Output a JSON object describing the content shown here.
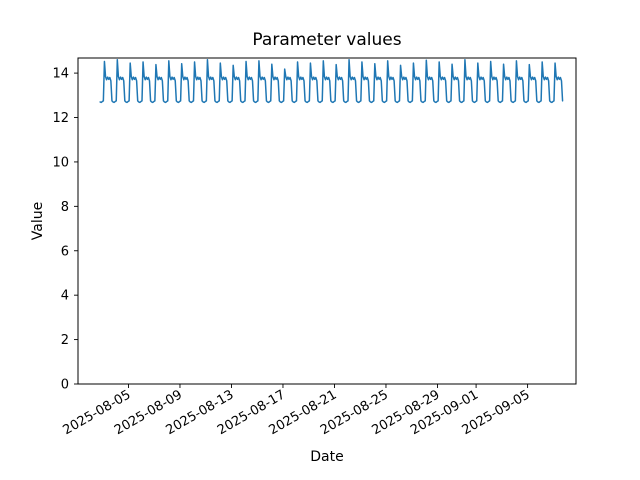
{
  "chart_data": {
    "type": "line",
    "title": "Parameter values",
    "xlabel": "Date",
    "ylabel": "Value",
    "grid": false,
    "legend_position": "none",
    "line_color": "#1f77b4",
    "axis_color": "#000000",
    "ylim": [
      0,
      14.68
    ],
    "y_ticks": [
      0,
      2,
      4,
      6,
      8,
      10,
      12,
      14
    ],
    "x_axis_origin_date": "2025-08-05",
    "xlim_day_offsets": [
      -3.92,
      34.76
    ],
    "x_ticks": [
      {
        "label": "2025-08-05",
        "day": 0
      },
      {
        "label": "2025-08-09",
        "day": 4
      },
      {
        "label": "2025-08-13",
        "day": 8
      },
      {
        "label": "2025-08-17",
        "day": 12
      },
      {
        "label": "2025-08-21",
        "day": 16
      },
      {
        "label": "2025-08-25",
        "day": 20
      },
      {
        "label": "2025-08-29",
        "day": 24
      },
      {
        "label": "2025-09-01",
        "day": 27
      },
      {
        "label": "2025-09-05",
        "day": 31
      }
    ],
    "series": [
      {
        "name": "parameter-values",
        "description": "Daily periodic signal: baseline ~12.7, sharp morning spike to ~14.5, afternoon plateau ~13.7-13.85, back to baseline",
        "data_start_date": "2025-08-02",
        "data_end_date": "2025-09-07",
        "start_day_offset": -2.2,
        "num_days": 36,
        "samples_per_day": 12,
        "sample_interval_hours": 2,
        "daily_profile": [
          12.7,
          12.68,
          12.72,
          12.75,
          14.5,
          13.85,
          13.7,
          13.82,
          13.72,
          13.8,
          13.65,
          12.75
        ],
        "peak_index": 4,
        "daily_peaks": [
          14.52,
          14.6,
          14.45,
          14.5,
          14.38,
          14.55,
          14.42,
          14.5,
          14.6,
          14.45,
          14.35,
          14.52,
          14.55,
          14.4,
          14.18,
          14.5,
          14.45,
          14.55,
          14.38,
          14.6,
          14.5,
          14.42,
          14.55,
          14.35,
          14.45,
          14.58,
          14.5,
          14.4,
          14.6,
          14.45,
          14.52,
          14.4,
          14.55,
          14.38,
          14.5,
          14.45
        ],
        "value_min": 12.68,
        "value_max": 14.6
      }
    ]
  }
}
